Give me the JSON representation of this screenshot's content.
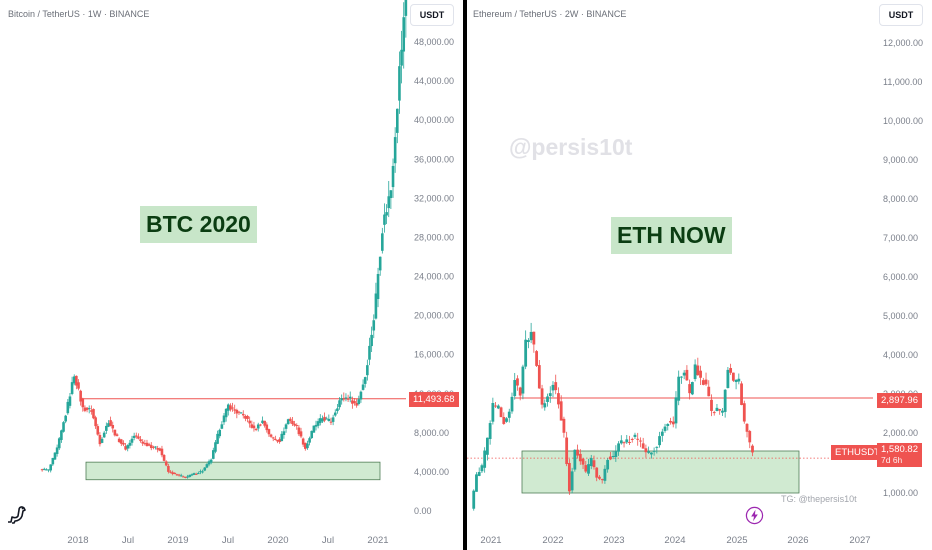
{
  "left_chart": {
    "title": "Bitcoin / TetherUS · 1W · BINANCE",
    "currency": "USDT",
    "label": "BTC 2020",
    "resistance_price": "11,493.68",
    "y_ticks": [
      "48,000.00",
      "44,000.00",
      "40,000.00",
      "36,000.00",
      "32,000.00",
      "28,000.00",
      "24,000.00",
      "20,000.00",
      "16,000.00",
      "12,000.00",
      "8,000.00",
      "4,000.00",
      "0.00"
    ],
    "x_ticks": [
      "2018",
      "Jul",
      "2019",
      "Jul",
      "2020",
      "Jul",
      "2021"
    ]
  },
  "right_chart": {
    "title": "Ethereum / TetherUS · 2W · BINANCE",
    "currency": "USDT",
    "label": "ETH NOW",
    "watermark": "@persis10t",
    "resistance_price": "2,897.96",
    "symbol_tag": "ETHUSDT",
    "last_price": "1,580.82",
    "countdown": "7d 6h",
    "telegram": "TG: @thepersis10t",
    "y_ticks": [
      "12,000.00",
      "11,000.00",
      "10,000.00",
      "9,000.00",
      "8,000.00",
      "7,000.00",
      "6,000.00",
      "5,000.00",
      "4,000.00",
      "3,000.00",
      "2,000.00",
      "1,000.00"
    ],
    "x_ticks": [
      "2021",
      "2022",
      "2023",
      "2024",
      "2025",
      "2026",
      "2027"
    ]
  },
  "colors": {
    "up": "#26a69a",
    "down": "#ef5350",
    "support_zone": "#c8e6c9",
    "divider": "#000000"
  },
  "icons": {
    "left_bottom": "tradingview-dino-icon",
    "right_bottom": "lightning-icon"
  },
  "chart_data": [
    {
      "type": "candlestick",
      "title": "Bitcoin / TetherUS · 1W · BINANCE",
      "x_range": [
        "2017-08",
        "2021-03"
      ],
      "y_range": [
        0,
        52000
      ],
      "closes": [
        [
          "2017-08",
          4300
        ],
        [
          "2017-09",
          4200
        ],
        [
          "2017-10",
          6400
        ],
        [
          "2017-11",
          9900
        ],
        [
          "2017-12",
          14000
        ],
        [
          "2018-01",
          10500
        ],
        [
          "2018-02",
          10300
        ],
        [
          "2018-03",
          7000
        ],
        [
          "2018-04",
          9200
        ],
        [
          "2018-05",
          7500
        ],
        [
          "2018-06",
          6400
        ],
        [
          "2018-07",
          7700
        ],
        [
          "2018-08",
          7000
        ],
        [
          "2018-09",
          6600
        ],
        [
          "2018-10",
          6300
        ],
        [
          "2018-11",
          4000
        ],
        [
          "2018-12",
          3700
        ],
        [
          "2019-01",
          3450
        ],
        [
          "2019-02",
          3800
        ],
        [
          "2019-03",
          4100
        ],
        [
          "2019-04",
          5300
        ],
        [
          "2019-05",
          8500
        ],
        [
          "2019-06",
          10800
        ],
        [
          "2019-07",
          10100
        ],
        [
          "2019-08",
          9600
        ],
        [
          "2019-09",
          8300
        ],
        [
          "2019-10",
          9200
        ],
        [
          "2019-11",
          7500
        ],
        [
          "2019-12",
          7200
        ],
        [
          "2020-01",
          9400
        ],
        [
          "2020-02",
          8600
        ],
        [
          "2020-03",
          6400
        ],
        [
          "2020-04",
          8600
        ],
        [
          "2020-05",
          9500
        ],
        [
          "2020-06",
          9150
        ],
        [
          "2020-07",
          11300
        ],
        [
          "2020-08",
          11700
        ],
        [
          "2020-09",
          10800
        ],
        [
          "2020-10",
          13800
        ],
        [
          "2020-11",
          19700
        ],
        [
          "2020-12",
          29000
        ],
        [
          "2021-01",
          33000
        ],
        [
          "2021-02",
          45000
        ],
        [
          "2021-03",
          55000
        ]
      ],
      "support_zone": [
        3200,
        5000
      ],
      "resistance": 11493.68,
      "annotation": "BTC 2020"
    },
    {
      "type": "candlestick",
      "title": "Ethereum / TetherUS · 2W · BINANCE",
      "x_range": [
        "2020-12",
        "2027-01"
      ],
      "y_range": [
        700,
        12500
      ],
      "closes": [
        [
          "2020-12",
          740
        ],
        [
          "2021-01",
          1300
        ],
        [
          "2021-02",
          1420
        ],
        [
          "2021-03",
          1900
        ],
        [
          "2021-04",
          2700
        ],
        [
          "2021-05",
          2650
        ],
        [
          "2021-06",
          2250
        ],
        [
          "2021-07",
          2550
        ],
        [
          "2021-08",
          3400
        ],
        [
          "2021-09",
          3000
        ],
        [
          "2021-10",
          4300
        ],
        [
          "2021-11",
          4600
        ],
        [
          "2021-12",
          3700
        ],
        [
          "2022-01",
          2700
        ],
        [
          "2022-02",
          2900
        ],
        [
          "2022-03",
          3300
        ],
        [
          "2022-04",
          2800
        ],
        [
          "2022-05",
          1950
        ],
        [
          "2022-06",
          1050
        ],
        [
          "2022-07",
          1700
        ],
        [
          "2022-08",
          1550
        ],
        [
          "2022-09",
          1330
        ],
        [
          "2022-10",
          1570
        ],
        [
          "2022-11",
          1280
        ],
        [
          "2022-12",
          1200
        ],
        [
          "2023-01",
          1580
        ],
        [
          "2023-02",
          1600
        ],
        [
          "2023-03",
          1800
        ],
        [
          "2023-04",
          1870
        ],
        [
          "2023-05",
          1870
        ],
        [
          "2023-06",
          1930
        ],
        [
          "2023-07",
          1850
        ],
        [
          "2023-08",
          1650
        ],
        [
          "2023-09",
          1670
        ],
        [
          "2023-10",
          1800
        ],
        [
          "2023-11",
          2050
        ],
        [
          "2023-12",
          2300
        ],
        [
          "2024-01",
          2280
        ],
        [
          "2024-02",
          3380
        ],
        [
          "2024-03",
          3600
        ],
        [
          "2024-04",
          3000
        ],
        [
          "2024-05",
          3750
        ],
        [
          "2024-06",
          3400
        ],
        [
          "2024-07",
          3230
        ],
        [
          "2024-08",
          2500
        ],
        [
          "2024-09",
          2600
        ],
        [
          "2024-10",
          2500
        ],
        [
          "2024-11",
          3700
        ],
        [
          "2024-12",
          3330
        ],
        [
          "2025-01",
          3300
        ],
        [
          "2025-02",
          2250
        ],
        [
          "2025-03",
          1820
        ],
        [
          "2025-04",
          1580
        ]
      ],
      "support_zone": [
        1000,
        1700
      ],
      "resistance": 2897.96,
      "last_price": 1580.82,
      "annotation": "ETH NOW"
    }
  ]
}
